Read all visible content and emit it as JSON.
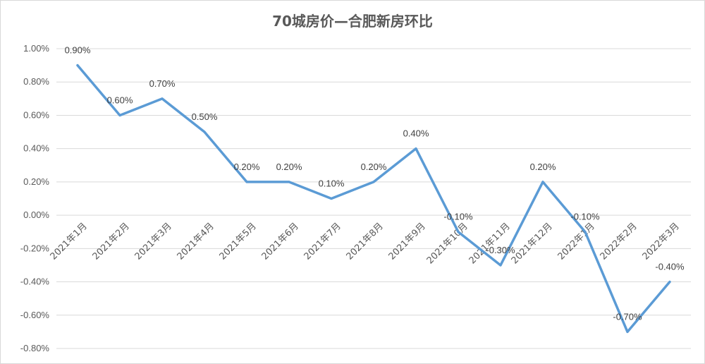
{
  "chart_data": {
    "type": "line",
    "title": "70城房价—合肥新房环比",
    "categories": [
      "2021年1月",
      "2021年2月",
      "2021年3月",
      "2021年4月",
      "2021年5月",
      "2021年6月",
      "2021年7月",
      "2021年8月",
      "2021年9月",
      "2021年10月",
      "2021年11月",
      "2021年12月",
      "2022年1月",
      "2022年2月",
      "2022年3月"
    ],
    "series": [
      {
        "values": [
          0.9,
          0.6,
          0.7,
          0.5,
          0.2,
          0.2,
          0.1,
          0.2,
          0.4,
          -0.1,
          -0.3,
          0.2,
          -0.1,
          -0.7,
          -0.4
        ],
        "labels": [
          "0.90%",
          "0.60%",
          "0.70%",
          "0.50%",
          "0.20%",
          "0.20%",
          "0.10%",
          "0.20%",
          "0.40%",
          "-0.10%",
          "-0.30%",
          "0.20%",
          "-0.10%",
          "-0.70%",
          "-0.40%"
        ],
        "color": "#5b9bd5"
      }
    ],
    "yticks": [
      "1.00%",
      "0.80%",
      "0.60%",
      "0.40%",
      "0.20%",
      "0.00%",
      "-0.20%",
      "-0.40%",
      "-0.60%",
      "-0.80%"
    ],
    "ylim": [
      -0.8,
      1.0
    ],
    "grid": true,
    "legend": "none"
  }
}
